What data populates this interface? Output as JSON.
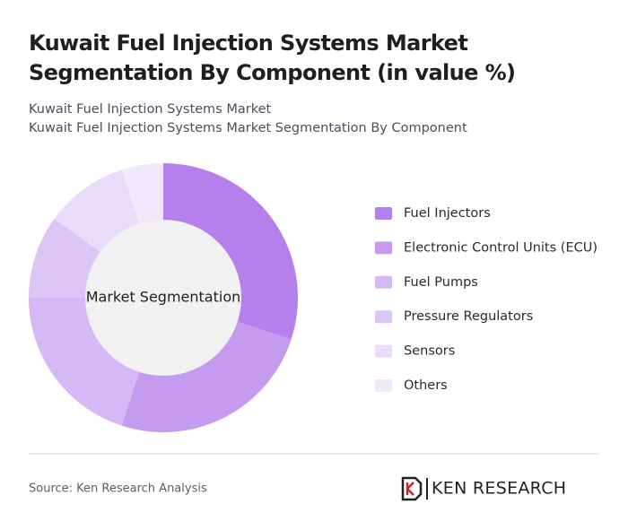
{
  "chart_data": {
    "type": "pie",
    "title": "Kuwait Fuel Injection Systems Market Segmentation By Component (in value %)",
    "subtitles": [
      "Kuwait Fuel Injection Systems Market",
      "Kuwait Fuel Injection Systems Market Segmentation By Component"
    ],
    "center_label": "Market Segmentation",
    "categories": [
      "Fuel Injectors",
      "Electronic Control Units (ECU)",
      "Fuel Pumps",
      "Pressure Regulators",
      "Sensors",
      "Others"
    ],
    "values": [
      30,
      25,
      20,
      10,
      10,
      5
    ],
    "colors": [
      "#b580ec",
      "#c59bf0",
      "#d5b8f5",
      "#dcc6f6",
      "#e8dcf9",
      "#f1e9fb"
    ],
    "source": "Source: Ken Research Analysis",
    "logo": "KEN RESEARCH"
  }
}
